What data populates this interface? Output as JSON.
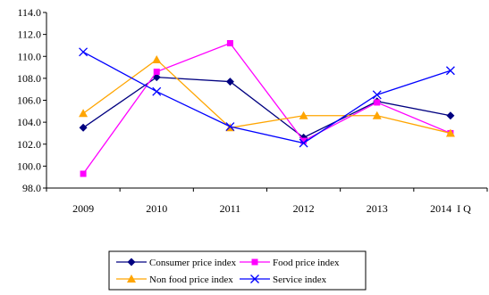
{
  "chart_data": {
    "type": "line",
    "categories": [
      "2009",
      "2010",
      "2011",
      "2012",
      "2013",
      "2014  I Q"
    ],
    "ylim": [
      98.0,
      114.0
    ],
    "ytick_step": 2.0,
    "yticks": [
      "98.0",
      "100.0",
      "102.0",
      "104.0",
      "106.0",
      "108.0",
      "110.0",
      "112.0",
      "114.0"
    ],
    "grid": false,
    "legend_position": "bottom",
    "series": [
      {
        "name": "Consumer price index",
        "color": "#000080",
        "marker": "diamond",
        "values": [
          103.5,
          108.1,
          107.7,
          102.6,
          105.9,
          104.6
        ]
      },
      {
        "name": "Food price index",
        "color": "#FF00FF",
        "marker": "square",
        "values": [
          99.3,
          108.6,
          111.2,
          102.3,
          105.8,
          103.0
        ]
      },
      {
        "name": "Non food price index",
        "color": "#FFA500",
        "marker": "triangle",
        "values": [
          104.8,
          109.7,
          103.5,
          104.6,
          104.6,
          103.0
        ]
      },
      {
        "name": "Service index",
        "color": "#0000FF",
        "marker": "x",
        "values": [
          110.4,
          106.8,
          103.6,
          102.1,
          106.5,
          108.7
        ]
      }
    ]
  }
}
